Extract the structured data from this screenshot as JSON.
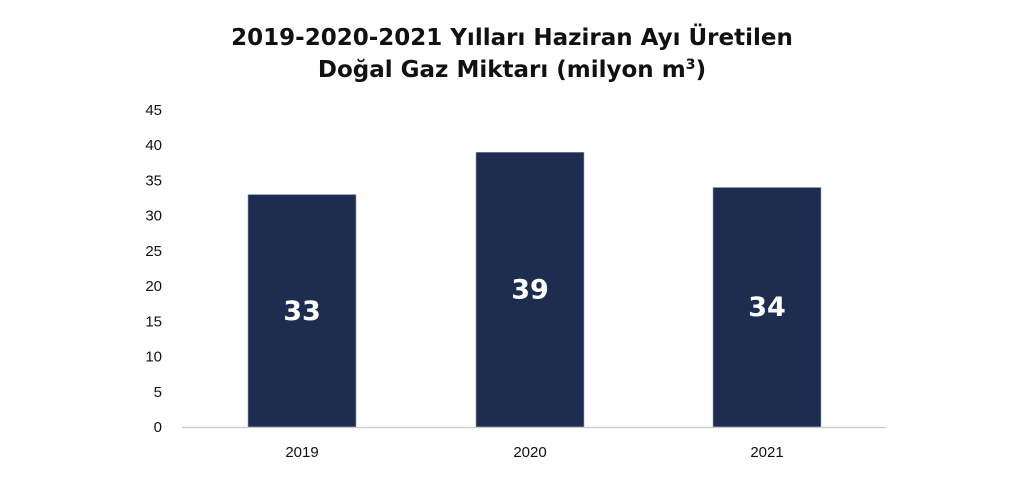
{
  "chart_data": {
    "type": "bar",
    "title_line1": "2019-2020-2021 Yılları Haziran Ayı Üretilen",
    "title_line2_main": "Doğal Gaz Miktarı (milyon m",
    "title_line2_sup": "3",
    "title_line2_end": ")",
    "categories": [
      "2019",
      "2020",
      "2021"
    ],
    "values": [
      33,
      39,
      34
    ],
    "data_labels": [
      "33",
      "39",
      "34"
    ],
    "ylim": [
      0,
      45
    ],
    "yticks": [
      "0",
      "5",
      "10",
      "15",
      "20",
      "25",
      "30",
      "35",
      "40",
      "45"
    ],
    "bar_color": "#1d2d4f",
    "axis_color": "#c8c8c8",
    "grid": false,
    "legend": "none"
  }
}
